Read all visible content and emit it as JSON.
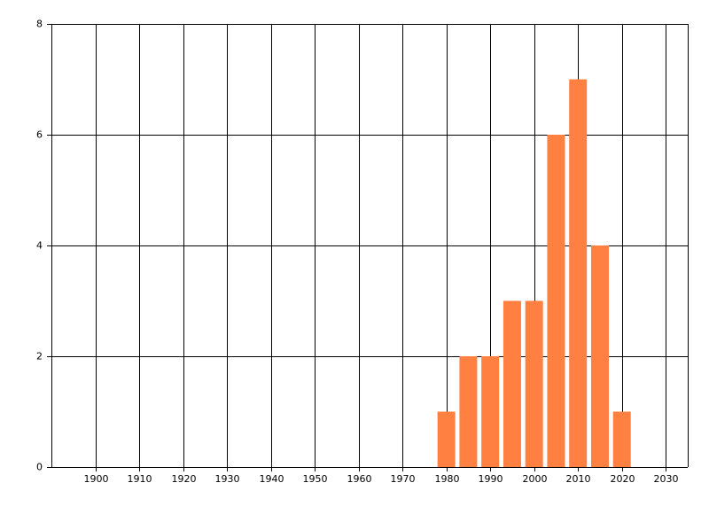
{
  "chart_data": {
    "type": "bar",
    "x": [
      1980,
      1985,
      1990,
      1995,
      2000,
      2005,
      2010,
      2015,
      2020
    ],
    "values": [
      1,
      2,
      2,
      3,
      3,
      6,
      7,
      4,
      1
    ],
    "color": "#ff8040",
    "xlim": [
      1890,
      2035
    ],
    "xticks": [
      1900,
      1910,
      1920,
      1930,
      1940,
      1950,
      1960,
      1970,
      1980,
      1990,
      2000,
      2010,
      2020,
      2030
    ],
    "ylim": [
      0,
      8
    ],
    "yticks": [
      0,
      2,
      4,
      6,
      8
    ],
    "grid": true
  }
}
